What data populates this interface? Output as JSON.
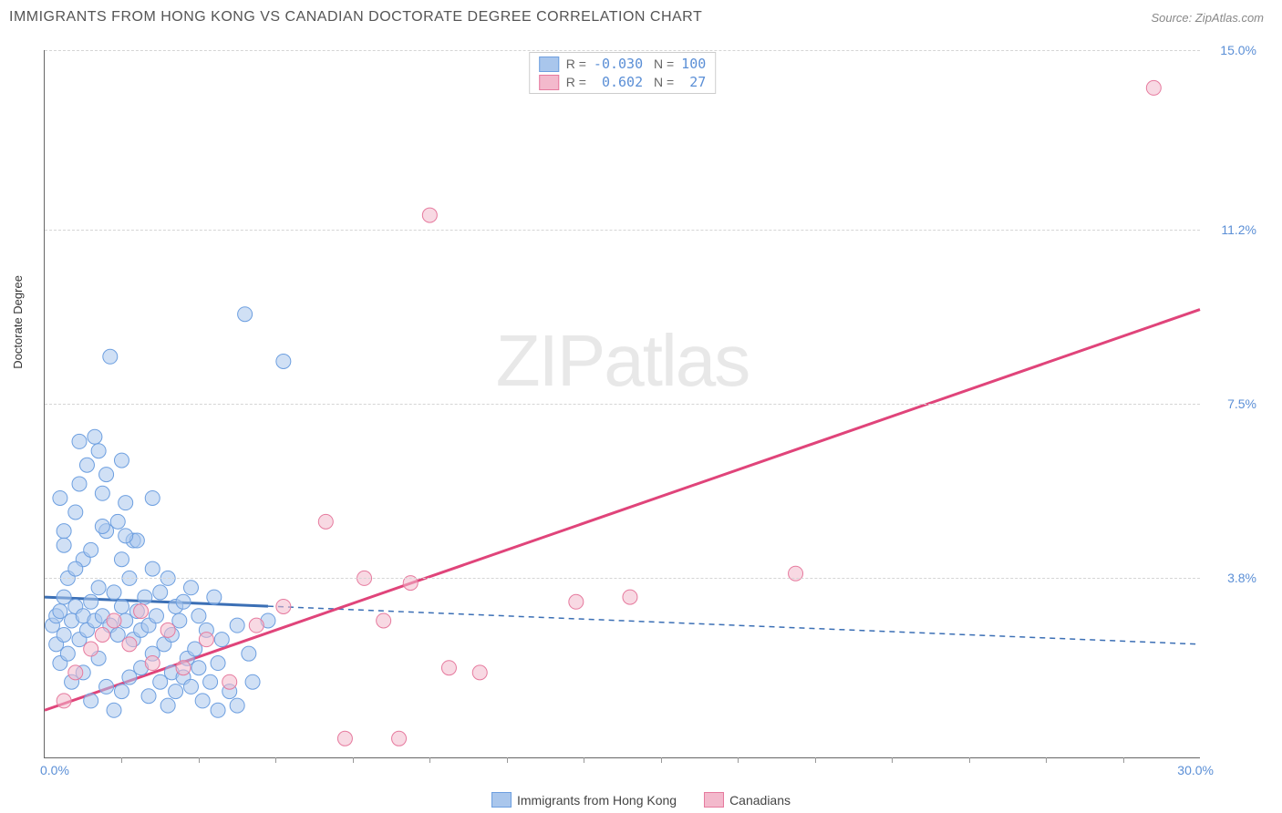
{
  "header": {
    "title": "IMMIGRANTS FROM HONG KONG VS CANADIAN DOCTORATE DEGREE CORRELATION CHART",
    "source": "Source: ZipAtlas.com"
  },
  "ylabel": "Doctorate Degree",
  "watermark": {
    "bold": "ZIP",
    "light": "atlas"
  },
  "chart": {
    "type": "scatter",
    "xlim": [
      0,
      30
    ],
    "ylim": [
      0,
      15
    ],
    "x_min_label": "0.0%",
    "x_max_label": "30.0%",
    "y_ticks": [
      3.8,
      7.5,
      11.2,
      15.0
    ],
    "y_tick_labels": [
      "3.8%",
      "7.5%",
      "11.2%",
      "15.0%"
    ],
    "x_minor_step": 2,
    "grid_color": "#d5d5d5",
    "background_color": "#ffffff",
    "marker_radius": 8,
    "marker_opacity": 0.55,
    "series": [
      {
        "name": "Immigrants from Hong Kong",
        "color": "#6d9fe0",
        "fill": "#a9c6ec",
        "R": "-0.030",
        "N": "100",
        "trend": {
          "solid_until_x": 5.8,
          "y1": 3.4,
          "y2": 2.4,
          "color": "#3b6fb5",
          "width": 3,
          "dash": "6 5"
        },
        "points": [
          [
            0.2,
            2.8
          ],
          [
            0.3,
            3.0
          ],
          [
            0.3,
            2.4
          ],
          [
            0.4,
            3.1
          ],
          [
            0.4,
            2.0
          ],
          [
            0.5,
            2.6
          ],
          [
            0.5,
            3.4
          ],
          [
            0.5,
            4.8
          ],
          [
            0.6,
            2.2
          ],
          [
            0.6,
            3.8
          ],
          [
            0.7,
            2.9
          ],
          [
            0.7,
            1.6
          ],
          [
            0.8,
            3.2
          ],
          [
            0.8,
            5.2
          ],
          [
            0.9,
            2.5
          ],
          [
            0.9,
            6.7
          ],
          [
            1.0,
            3.0
          ],
          [
            1.0,
            1.8
          ],
          [
            1.0,
            4.2
          ],
          [
            1.1,
            2.7
          ],
          [
            1.1,
            6.2
          ],
          [
            1.2,
            3.3
          ],
          [
            1.2,
            1.2
          ],
          [
            1.3,
            2.9
          ],
          [
            1.3,
            6.8
          ],
          [
            1.4,
            3.6
          ],
          [
            1.4,
            2.1
          ],
          [
            1.5,
            5.6
          ],
          [
            1.5,
            3.0
          ],
          [
            1.6,
            1.5
          ],
          [
            1.6,
            6.0
          ],
          [
            1.7,
            2.8
          ],
          [
            1.7,
            8.5
          ],
          [
            1.8,
            3.5
          ],
          [
            1.8,
            1.0
          ],
          [
            1.9,
            5.0
          ],
          [
            1.9,
            2.6
          ],
          [
            2.0,
            3.2
          ],
          [
            2.0,
            1.4
          ],
          [
            2.1,
            5.4
          ],
          [
            2.1,
            2.9
          ],
          [
            2.2,
            3.8
          ],
          [
            2.2,
            1.7
          ],
          [
            2.3,
            2.5
          ],
          [
            2.3,
            4.6
          ],
          [
            2.4,
            3.1
          ],
          [
            2.5,
            1.9
          ],
          [
            2.5,
            2.7
          ],
          [
            2.6,
            3.4
          ],
          [
            2.7,
            1.3
          ],
          [
            2.7,
            2.8
          ],
          [
            2.8,
            5.5
          ],
          [
            2.8,
            2.2
          ],
          [
            2.9,
            3.0
          ],
          [
            3.0,
            1.6
          ],
          [
            3.0,
            3.5
          ],
          [
            3.1,
            2.4
          ],
          [
            3.2,
            1.1
          ],
          [
            3.2,
            3.8
          ],
          [
            3.3,
            2.6
          ],
          [
            3.3,
            1.8
          ],
          [
            3.4,
            3.2
          ],
          [
            3.4,
            1.4
          ],
          [
            3.5,
            2.9
          ],
          [
            3.6,
            1.7
          ],
          [
            3.6,
            3.3
          ],
          [
            3.7,
            2.1
          ],
          [
            3.8,
            1.5
          ],
          [
            3.8,
            3.6
          ],
          [
            3.9,
            2.3
          ],
          [
            4.0,
            1.9
          ],
          [
            4.0,
            3.0
          ],
          [
            4.1,
            1.2
          ],
          [
            4.2,
            2.7
          ],
          [
            4.3,
            1.6
          ],
          [
            4.4,
            3.4
          ],
          [
            4.5,
            2.0
          ],
          [
            4.5,
            1.0
          ],
          [
            4.6,
            2.5
          ],
          [
            4.8,
            1.4
          ],
          [
            5.0,
            2.8
          ],
          [
            5.0,
            1.1
          ],
          [
            5.2,
            9.4
          ],
          [
            5.3,
            2.2
          ],
          [
            5.4,
            1.6
          ],
          [
            5.8,
            2.9
          ],
          [
            6.2,
            8.4
          ],
          [
            1.4,
            6.5
          ],
          [
            2.0,
            6.3
          ],
          [
            0.5,
            4.5
          ],
          [
            0.8,
            4.0
          ],
          [
            1.2,
            4.4
          ],
          [
            1.6,
            4.8
          ],
          [
            2.0,
            4.2
          ],
          [
            2.4,
            4.6
          ],
          [
            2.8,
            4.0
          ],
          [
            0.4,
            5.5
          ],
          [
            0.9,
            5.8
          ],
          [
            1.5,
            4.9
          ],
          [
            2.1,
            4.7
          ]
        ]
      },
      {
        "name": "Canadians",
        "color": "#e67a9e",
        "fill": "#f3b9cc",
        "R": " 0.602",
        "N": " 27",
        "trend": {
          "solid_until_x": 30,
          "y1": 1.0,
          "y2": 9.5,
          "color": "#e0447a",
          "width": 3
        },
        "points": [
          [
            0.5,
            1.2
          ],
          [
            0.8,
            1.8
          ],
          [
            1.2,
            2.3
          ],
          [
            1.5,
            2.6
          ],
          [
            1.8,
            2.9
          ],
          [
            2.2,
            2.4
          ],
          [
            2.5,
            3.1
          ],
          [
            2.8,
            2.0
          ],
          [
            3.2,
            2.7
          ],
          [
            3.6,
            1.9
          ],
          [
            4.2,
            2.5
          ],
          [
            4.8,
            1.6
          ],
          [
            5.5,
            2.8
          ],
          [
            6.2,
            3.2
          ],
          [
            7.3,
            5.0
          ],
          [
            7.8,
            0.4
          ],
          [
            8.3,
            3.8
          ],
          [
            8.8,
            2.9
          ],
          [
            9.2,
            0.4
          ],
          [
            9.5,
            3.7
          ],
          [
            10.0,
            11.5
          ],
          [
            10.5,
            1.9
          ],
          [
            11.3,
            1.8
          ],
          [
            13.8,
            3.3
          ],
          [
            15.2,
            3.4
          ],
          [
            19.5,
            3.9
          ],
          [
            28.8,
            14.2
          ]
        ]
      }
    ]
  },
  "bottom_legend": [
    {
      "label": "Immigrants from Hong Kong",
      "fill": "#a9c6ec",
      "stroke": "#6d9fe0"
    },
    {
      "label": "Canadians",
      "fill": "#f3b9cc",
      "stroke": "#e67a9e"
    }
  ]
}
